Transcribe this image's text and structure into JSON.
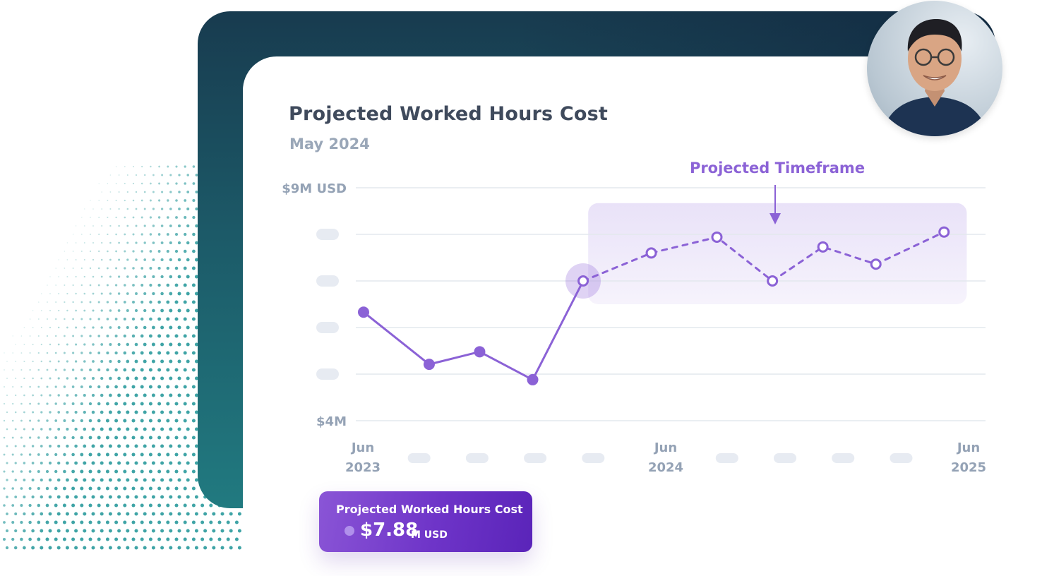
{
  "header": {
    "title": "Projected Worked Hours Cost",
    "subtitle": "May 2024"
  },
  "chart_data": {
    "type": "line",
    "yaxis": {
      "ticks": [
        "$9M USD",
        "",
        "",
        "",
        "",
        "$4M"
      ],
      "min": 4,
      "max": 9,
      "unit": "M USD"
    },
    "xaxis": {
      "labeled_ticks": [
        {
          "x": 0,
          "line1": "Jun",
          "line2": "2023"
        },
        {
          "x": 12,
          "line1": "Jun",
          "line2": "2024"
        },
        {
          "x": 24,
          "line1": "Jun",
          "line2": "2025"
        }
      ],
      "placeholder_ticks": [
        2.2,
        4.5,
        6.8,
        9.1,
        14.4,
        16.7,
        19.0,
        21.3
      ],
      "min": 0,
      "max": 24
    },
    "y_placeholder_ticks": [
      8,
      7,
      6,
      5
    ],
    "series": [
      {
        "style": "solid",
        "points": [
          [
            0,
            6.33
          ],
          [
            2.6,
            5.21
          ],
          [
            4.6,
            5.48
          ],
          [
            6.7,
            4.88
          ],
          [
            8.7,
            7.0
          ]
        ]
      },
      {
        "style": "dashed",
        "points": [
          [
            8.7,
            7.0
          ],
          [
            11.4,
            7.6
          ],
          [
            14.0,
            7.94
          ],
          [
            16.2,
            7.0
          ],
          [
            18.2,
            7.73
          ],
          [
            20.3,
            7.36
          ],
          [
            23.0,
            8.05
          ]
        ]
      }
    ],
    "highlight_point": [
      8.7,
      7.0
    ],
    "projected_region": {
      "label": "Projected Timeframe",
      "x_start": 8.9,
      "x_end": 23.9,
      "y_low": 6.5,
      "y_high": 8.67
    },
    "grid": true,
    "colors": {
      "line": "#8b62d6",
      "region": "#ece6f8",
      "grid": "#e3e8ee",
      "placeholder": "#e7ebf2",
      "axis_text": "#94a2b5",
      "annotation": "#8b62d6"
    }
  },
  "summary": {
    "label": "Projected Worked Hours Cost",
    "value": "$7.88",
    "unit": "M USD"
  },
  "avatar": {
    "icon": "person-portrait-icon"
  }
}
